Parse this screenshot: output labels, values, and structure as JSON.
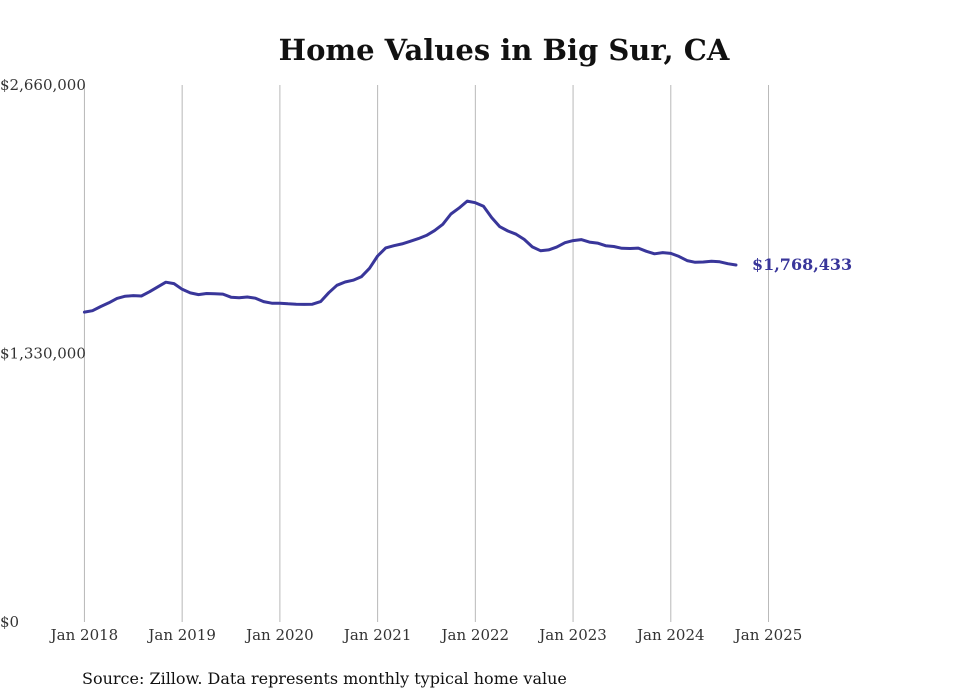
{
  "chart_data": {
    "type": "line",
    "title": "Home Values in Big Sur, CA",
    "xlabel": "",
    "ylabel": "",
    "ylim": [
      0,
      2660000
    ],
    "y_ticks": [
      {
        "value": 0,
        "label": "$0"
      },
      {
        "value": 1330000,
        "label": "$1,330,000"
      },
      {
        "value": 2660000,
        "label": "$2,660,000"
      }
    ],
    "x_ticks": [
      {
        "value": 2018.0,
        "label": "Jan 2018"
      },
      {
        "value": 2019.0,
        "label": "Jan 2019"
      },
      {
        "value": 2020.0,
        "label": "Jan 2020"
      },
      {
        "value": 2021.0,
        "label": "Jan 2021"
      },
      {
        "value": 2022.0,
        "label": "Jan 2022"
      },
      {
        "value": 2023.0,
        "label": "Jan 2023"
      },
      {
        "value": 2024.0,
        "label": "Jan 2024"
      },
      {
        "value": 2025.0,
        "label": "Jan 2025"
      }
    ],
    "xlim": [
      2017.75,
      2026.55
    ],
    "grid": "vertical",
    "series": [
      {
        "name": "Typical home value",
        "color": "#39369a",
        "end_label": "$1,768,433",
        "points": [
          [
            2018.0,
            1535000
          ],
          [
            2018.083,
            1542000
          ],
          [
            2018.167,
            1563000
          ],
          [
            2018.25,
            1581000
          ],
          [
            2018.333,
            1603000
          ],
          [
            2018.417,
            1614000
          ],
          [
            2018.5,
            1617000
          ],
          [
            2018.583,
            1615000
          ],
          [
            2018.667,
            1636000
          ],
          [
            2018.75,
            1660000
          ],
          [
            2018.833,
            1683000
          ],
          [
            2018.917,
            1676000
          ],
          [
            2019.0,
            1648000
          ],
          [
            2019.083,
            1630000
          ],
          [
            2019.167,
            1622000
          ],
          [
            2019.25,
            1627000
          ],
          [
            2019.333,
            1626000
          ],
          [
            2019.417,
            1624000
          ],
          [
            2019.5,
            1609000
          ],
          [
            2019.583,
            1606000
          ],
          [
            2019.667,
            1610000
          ],
          [
            2019.75,
            1604000
          ],
          [
            2019.833,
            1587000
          ],
          [
            2019.917,
            1579000
          ],
          [
            2020.0,
            1579000
          ],
          [
            2020.083,
            1576000
          ],
          [
            2020.167,
            1574000
          ],
          [
            2020.25,
            1573000
          ],
          [
            2020.333,
            1574000
          ],
          [
            2020.417,
            1587000
          ],
          [
            2020.5,
            1631000
          ],
          [
            2020.583,
            1668000
          ],
          [
            2020.667,
            1684000
          ],
          [
            2020.75,
            1693000
          ],
          [
            2020.833,
            1710000
          ],
          [
            2020.917,
            1752000
          ],
          [
            2021.0,
            1813000
          ],
          [
            2021.083,
            1853000
          ],
          [
            2021.167,
            1864000
          ],
          [
            2021.25,
            1873000
          ],
          [
            2021.333,
            1886000
          ],
          [
            2021.417,
            1899000
          ],
          [
            2021.5,
            1915000
          ],
          [
            2021.583,
            1939000
          ],
          [
            2021.667,
            1970000
          ],
          [
            2021.75,
            2021000
          ],
          [
            2021.833,
            2050000
          ],
          [
            2021.917,
            2085000
          ],
          [
            2022.0,
            2077000
          ],
          [
            2022.083,
            2059000
          ],
          [
            2022.167,
            2003000
          ],
          [
            2022.25,
            1958000
          ],
          [
            2022.333,
            1937000
          ],
          [
            2022.417,
            1921000
          ],
          [
            2022.5,
            1895000
          ],
          [
            2022.583,
            1858000
          ],
          [
            2022.667,
            1839000
          ],
          [
            2022.75,
            1843000
          ],
          [
            2022.833,
            1857000
          ],
          [
            2022.917,
            1879000
          ],
          [
            2023.0,
            1889000
          ],
          [
            2023.083,
            1894000
          ],
          [
            2023.167,
            1882000
          ],
          [
            2023.25,
            1877000
          ],
          [
            2023.333,
            1864000
          ],
          [
            2023.417,
            1860000
          ],
          [
            2023.5,
            1851000
          ],
          [
            2023.583,
            1850000
          ],
          [
            2023.667,
            1852000
          ],
          [
            2023.75,
            1836000
          ],
          [
            2023.833,
            1824000
          ],
          [
            2023.917,
            1830000
          ],
          [
            2024.0,
            1826000
          ],
          [
            2024.083,
            1811000
          ],
          [
            2024.167,
            1790000
          ],
          [
            2024.25,
            1782000
          ],
          [
            2024.333,
            1783000
          ],
          [
            2024.417,
            1787000
          ],
          [
            2024.5,
            1784000
          ],
          [
            2024.583,
            1775000
          ],
          [
            2024.667,
            1768433
          ]
        ]
      }
    ]
  },
  "footer": {
    "source_text": "Source: Zillow. Data represents monthly typical home value"
  }
}
